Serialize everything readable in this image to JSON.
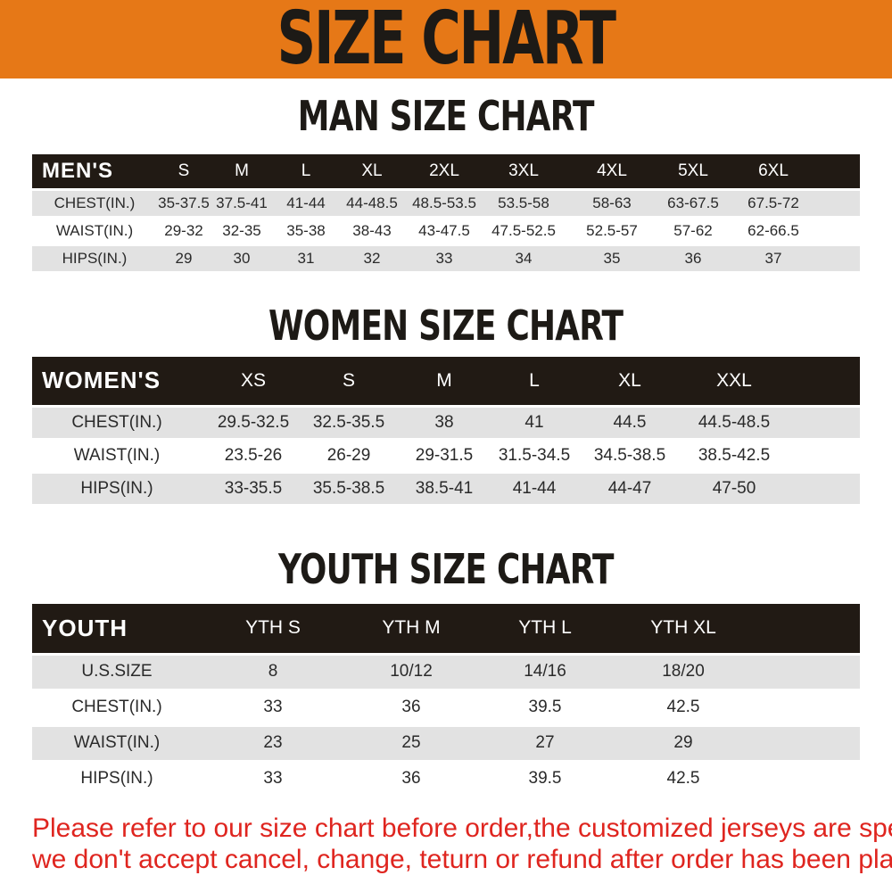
{
  "banner": {
    "title": "SIZE CHART"
  },
  "sections": [
    {
      "heading": "MAN SIZE CHART",
      "table": {
        "label": "MEN'S",
        "columns": [
          "S",
          "M",
          "L",
          "XL",
          "2XL",
          "3XL",
          "4XL",
          "5XL",
          "6XL"
        ],
        "rows": [
          {
            "label": "CHEST(IN.)",
            "values": [
              "35-37.5",
              "37.5-41",
              "41-44",
              "44-48.5",
              "48.5-53.5",
              "53.5-58",
              "58-63",
              "63-67.5",
              "67.5-72"
            ]
          },
          {
            "label": "WAIST(IN.)",
            "values": [
              "29-32",
              "32-35",
              "35-38",
              "38-43",
              "43-47.5",
              "47.5-52.5",
              "52.5-57",
              "57-62",
              "62-66.5"
            ]
          },
          {
            "label": "HIPS(IN.)",
            "values": [
              "29",
              "30",
              "31",
              "32",
              "33",
              "34",
              "35",
              "36",
              "37"
            ]
          }
        ]
      }
    },
    {
      "heading": "WOMEN SIZE CHART",
      "table": {
        "label": "WOMEN'S",
        "columns": [
          "XS",
          "S",
          "M",
          "L",
          "XL",
          "XXL"
        ],
        "rows": [
          {
            "label": "CHEST(IN.)",
            "values": [
              "29.5-32.5",
              "32.5-35.5",
              "38",
              "41",
              "44.5",
              "44.5-48.5"
            ]
          },
          {
            "label": "WAIST(IN.)",
            "values": [
              "23.5-26",
              "26-29",
              "29-31.5",
              "31.5-34.5",
              "34.5-38.5",
              "38.5-42.5"
            ]
          },
          {
            "label": "HIPS(IN.)",
            "values": [
              "33-35.5",
              "35.5-38.5",
              "38.5-41",
              "41-44",
              "44-47",
              "47-50"
            ]
          }
        ]
      }
    },
    {
      "heading": "YOUTH SIZE CHART",
      "table": {
        "label": "YOUTH",
        "columns": [
          "YTH S",
          "YTH M",
          "YTH L",
          "YTH XL"
        ],
        "rows": [
          {
            "label": "U.S.SIZE",
            "values": [
              "8",
              "10/12",
              "14/16",
              "18/20"
            ]
          },
          {
            "label": "CHEST(IN.)",
            "values": [
              "33",
              "36",
              "39.5",
              "42.5"
            ]
          },
          {
            "label": "WAIST(IN.)",
            "values": [
              "23",
              "25",
              "27",
              "29"
            ]
          },
          {
            "label": "HIPS(IN.)",
            "values": [
              "33",
              "36",
              "39.5",
              "42.5"
            ]
          }
        ]
      }
    }
  ],
  "footer": {
    "lines": [
      "Please refer to our size chart before order,the customized jerseys are special products,",
      "we don't accept cancel, change, teturn or refund after order has been placed!"
    ]
  },
  "colors": {
    "banner_bg": "#e67817",
    "table_header_bg": "#211a14",
    "row_alt_bg": "#e2e2e2",
    "notice_text": "#df251f",
    "heading_text": "#1d1a16"
  }
}
